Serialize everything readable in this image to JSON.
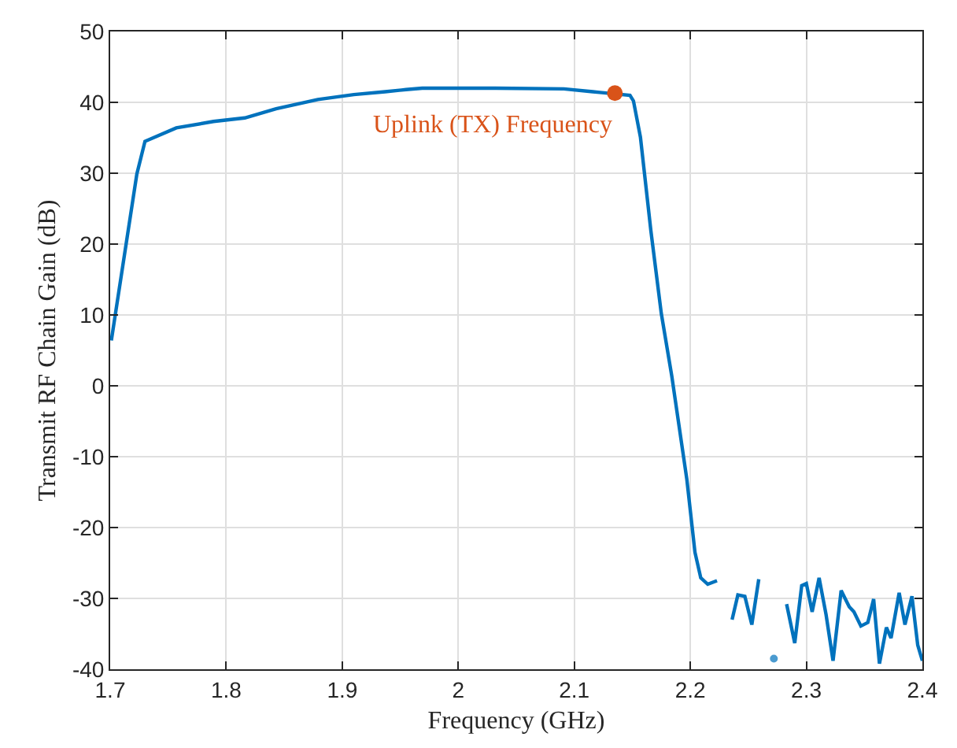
{
  "chart_data": {
    "type": "line",
    "xlabel": "Frequency (GHz)",
    "ylabel": "Transmit RF Chain Gain (dB)",
    "xlim": [
      1.7,
      2.4
    ],
    "xticks": [
      1.7,
      1.8,
      1.9,
      2,
      2.1,
      2.2,
      2.3,
      2.4
    ],
    "ylim": [
      -40,
      50
    ],
    "yticks": [
      -40,
      -30,
      -20,
      -10,
      0,
      10,
      20,
      30,
      40,
      50
    ],
    "grid": true,
    "series": [
      {
        "color": "#0072bd",
        "marker": "none",
        "line_style": "solid",
        "x": [
          1.701,
          1.723,
          1.73,
          1.757,
          1.789,
          1.816,
          1.843,
          1.879,
          1.91,
          1.937,
          1.955,
          1.969,
          2.032,
          2.091,
          2.116,
          2.122,
          2.148,
          2.151,
          2.157,
          2.166,
          2.175,
          2.184,
          2.197,
          2.204,
          2.209,
          2.215,
          2.223,
          2.229,
          2.236,
          2.241,
          2.247,
          2.253,
          2.259,
          2.265,
          2.272,
          2.278,
          2.283,
          2.29,
          2.296,
          2.3,
          2.305,
          2.311,
          2.317,
          2.323,
          2.33,
          2.337,
          2.341,
          2.347,
          2.353,
          2.358,
          2.363,
          2.369,
          2.373,
          2.38,
          2.385,
          2.391,
          2.396,
          2.4
        ],
        "values": [
          6.4,
          29.9,
          34.5,
          36.4,
          37.3,
          37.8,
          39.1,
          40.4,
          41.1,
          41.5,
          41.8,
          42.0,
          42.0,
          41.9,
          41.5,
          41.4,
          41.0,
          40.2,
          35.1,
          21.9,
          10.2,
          1.4,
          -13.2,
          -23.5,
          -27.1,
          -28.0,
          -27.5,
          null,
          -33.0,
          -29.5,
          -29.7,
          -33.7,
          -27.3,
          null,
          -38.5,
          null,
          -30.8,
          -36.3,
          -28.2,
          -27.9,
          -31.9,
          -27.1,
          -32.3,
          -38.8,
          -28.9,
          -31.2,
          -31.9,
          -33.9,
          -33.4,
          -30.1,
          -39.2,
          -34.1,
          -35.6,
          -29.2,
          -33.7,
          -29.7,
          -36.6,
          -38.8
        ]
      },
      {
        "type": "scatter",
        "color": "#d95319",
        "marker": "circle",
        "x": [
          2.135
        ],
        "values": [
          41.3
        ]
      }
    ],
    "annotations": [
      {
        "text": "Uplink (TX) Frequency",
        "x": 2.135,
        "y": 41.3
      }
    ]
  }
}
